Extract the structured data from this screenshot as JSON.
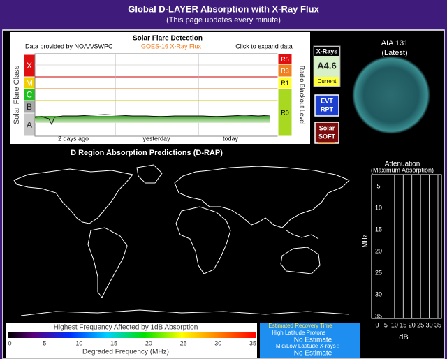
{
  "header": {
    "title": "Global D-LAYER Absorption with X-Ray Flux",
    "subtitle": "(This page updates every minute)"
  },
  "flare_panel": {
    "title": "Solar Flare Detection",
    "source": "Data provided by NOAA/SWPC",
    "instrument": "GOES-16 X-Ray Flux",
    "link": "Click to expand data",
    "y_label": "Solar Flare Class",
    "classes": [
      "X",
      "M",
      "C",
      "B",
      "A"
    ],
    "right_label": "Radio Blackout Level",
    "levels": [
      "R5",
      "R3",
      "R1",
      "R0"
    ],
    "time_labels": [
      "2 days ago",
      "yesterday",
      "today"
    ]
  },
  "xray_box": {
    "header": "X-Rays",
    "value": "A4.6",
    "footer": "Current"
  },
  "buttons": {
    "evt": [
      "EVT",
      "RPT"
    ],
    "soft": [
      "Solar",
      "SOFT"
    ]
  },
  "aia": {
    "title": "AIA 131",
    "subtitle": "(Latest)"
  },
  "drap": {
    "title": "D Region Absorption Predictions (D-RAP)"
  },
  "attenuation": {
    "title": "Attenuation",
    "subtitle": "(Maximum Absorption)",
    "y_label": "MHz",
    "x_label": "dB",
    "yticks": [
      "5",
      "10",
      "15",
      "20",
      "25",
      "30",
      "35"
    ],
    "xticks": [
      "0",
      "5",
      "10",
      "15",
      "20",
      "25",
      "30",
      "35"
    ]
  },
  "colorbar": {
    "title": "Highest Frequency Affected by 1dB Absorption",
    "ticks": [
      "0",
      "5",
      "10",
      "15",
      "20",
      "25",
      "30",
      "35"
    ],
    "label": "Degraded Frequency (MHz)"
  },
  "recovery": {
    "title": "Estimated Recovery Time",
    "protons_label": "High Latitude Protons :",
    "protons_value": "No Estimate",
    "xrays_label": "Mid/Low Latitude X-rays :",
    "xrays_value": "No Estimate"
  }
}
